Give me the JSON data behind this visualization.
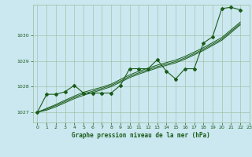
{
  "title": "Graphe pression niveau de la mer (hPa)",
  "background_color": "#cbe8f0",
  "grid_color": "#99bb99",
  "line_color": "#1a5c1a",
  "xlim": [
    -0.5,
    23
  ],
  "ylim": [
    1026.6,
    1031.2
  ],
  "yticks": [
    1027,
    1028,
    1029,
    1030
  ],
  "xticks": [
    0,
    1,
    2,
    3,
    4,
    5,
    6,
    7,
    8,
    9,
    10,
    11,
    12,
    13,
    14,
    15,
    16,
    17,
    18,
    19,
    20,
    21,
    22,
    23
  ],
  "series_main": [
    1027.0,
    1027.7,
    1027.7,
    1027.8,
    1028.05,
    1027.75,
    1027.75,
    1027.75,
    1027.75,
    1028.05,
    1028.7,
    1028.7,
    1028.7,
    1029.05,
    1028.6,
    1028.3,
    1028.7,
    1028.7,
    1029.7,
    1029.95,
    1031.05,
    1031.1,
    1031.0
  ],
  "series_smooth1": [
    1027.0,
    1027.15,
    1027.3,
    1027.47,
    1027.63,
    1027.78,
    1027.88,
    1027.98,
    1028.1,
    1028.28,
    1028.46,
    1028.6,
    1028.72,
    1028.84,
    1028.94,
    1029.04,
    1029.18,
    1029.35,
    1029.52,
    1029.72,
    1029.92,
    1030.22,
    1030.52
  ],
  "series_smooth2": [
    1027.0,
    1027.12,
    1027.26,
    1027.42,
    1027.58,
    1027.72,
    1027.82,
    1027.93,
    1028.05,
    1028.22,
    1028.4,
    1028.54,
    1028.66,
    1028.78,
    1028.88,
    1028.98,
    1029.12,
    1029.29,
    1029.46,
    1029.66,
    1029.86,
    1030.16,
    1030.46
  ],
  "series_smooth3": [
    1027.0,
    1027.08,
    1027.21,
    1027.37,
    1027.53,
    1027.66,
    1027.77,
    1027.88,
    1028.0,
    1028.17,
    1028.35,
    1028.49,
    1028.61,
    1028.73,
    1028.83,
    1028.93,
    1029.07,
    1029.24,
    1029.41,
    1029.61,
    1029.81,
    1030.11,
    1030.41
  ]
}
